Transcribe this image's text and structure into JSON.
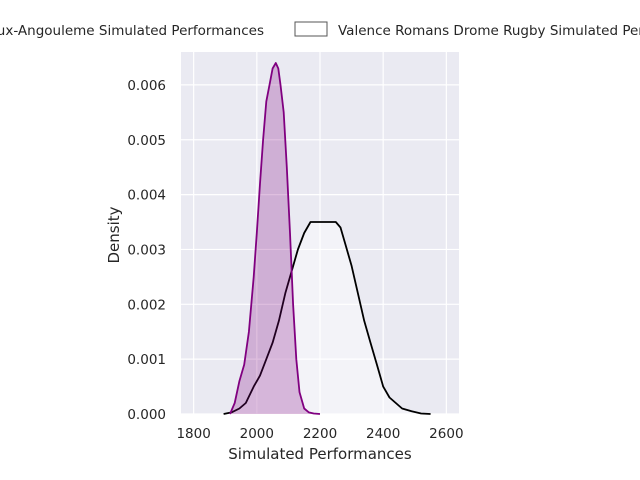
{
  "chart_data": {
    "type": "area",
    "xlabel": "Simulated Performances",
    "ylabel": "Density",
    "xlim": [
      1760,
      2640
    ],
    "ylim": [
      0,
      0.0066
    ],
    "x_ticks": [
      1800,
      2000,
      2200,
      2400,
      2600
    ],
    "x_tick_labels": [
      "1800",
      "2000",
      "2200",
      "2400",
      "2600"
    ],
    "y_ticks": [
      0,
      0.001,
      0.002,
      0.003,
      0.004,
      0.005,
      0.006
    ],
    "y_tick_labels": [
      "0.000",
      "0.001",
      "0.002",
      "0.003",
      "0.004",
      "0.005",
      "0.006"
    ],
    "grid": true,
    "legend_position": "top",
    "legend": [
      {
        "label": "Soyaux-Angouleme Simulated Performances",
        "swatch": "filled"
      },
      {
        "label": "Valence Romans Drome Rugby Simulated Performances",
        "swatch": "hollow"
      }
    ],
    "series": [
      {
        "name": "Soyaux-Angouleme Simulated Performances",
        "color": "#800080",
        "fill": "#800080",
        "fill_opacity": 0.25,
        "x": [
          1915,
          1930,
          1945,
          1960,
          1975,
          1990,
          2000,
          2010,
          2020,
          2030,
          2040,
          2050,
          2060,
          2068,
          2075,
          2085,
          2095,
          2105,
          2115,
          2125,
          2135,
          2150,
          2165,
          2180,
          2200
        ],
        "y": [
          0.0,
          0.0002,
          0.0006,
          0.0009,
          0.0015,
          0.0025,
          0.0033,
          0.0042,
          0.005,
          0.0057,
          0.006,
          0.0063,
          0.0064,
          0.0063,
          0.006,
          0.0055,
          0.0045,
          0.0033,
          0.002,
          0.001,
          0.0004,
          0.0001,
          3e-05,
          1e-05,
          0.0
        ]
      },
      {
        "name": "Valence Romans Drome Rugby Simulated Performances",
        "color": "#000000",
        "fill": "#ffffff",
        "fill_opacity": 0.45,
        "x": [
          1895,
          1920,
          1945,
          1965,
          1990,
          2010,
          2030,
          2050,
          2070,
          2090,
          2110,
          2130,
          2150,
          2170,
          2190,
          2210,
          2230,
          2250,
          2265,
          2280,
          2300,
          2320,
          2340,
          2360,
          2380,
          2400,
          2420,
          2440,
          2460,
          2490,
          2520,
          2550
        ],
        "y": [
          0.0,
          3e-05,
          0.0001,
          0.0002,
          0.0005,
          0.0007,
          0.001,
          0.0013,
          0.0017,
          0.0022,
          0.0026,
          0.003,
          0.0033,
          0.0035,
          0.0035,
          0.0035,
          0.0035,
          0.0035,
          0.0034,
          0.0031,
          0.0027,
          0.0022,
          0.0017,
          0.0013,
          0.0009,
          0.0005,
          0.0003,
          0.0002,
          0.0001,
          5e-05,
          1e-05,
          0.0
        ]
      }
    ]
  }
}
